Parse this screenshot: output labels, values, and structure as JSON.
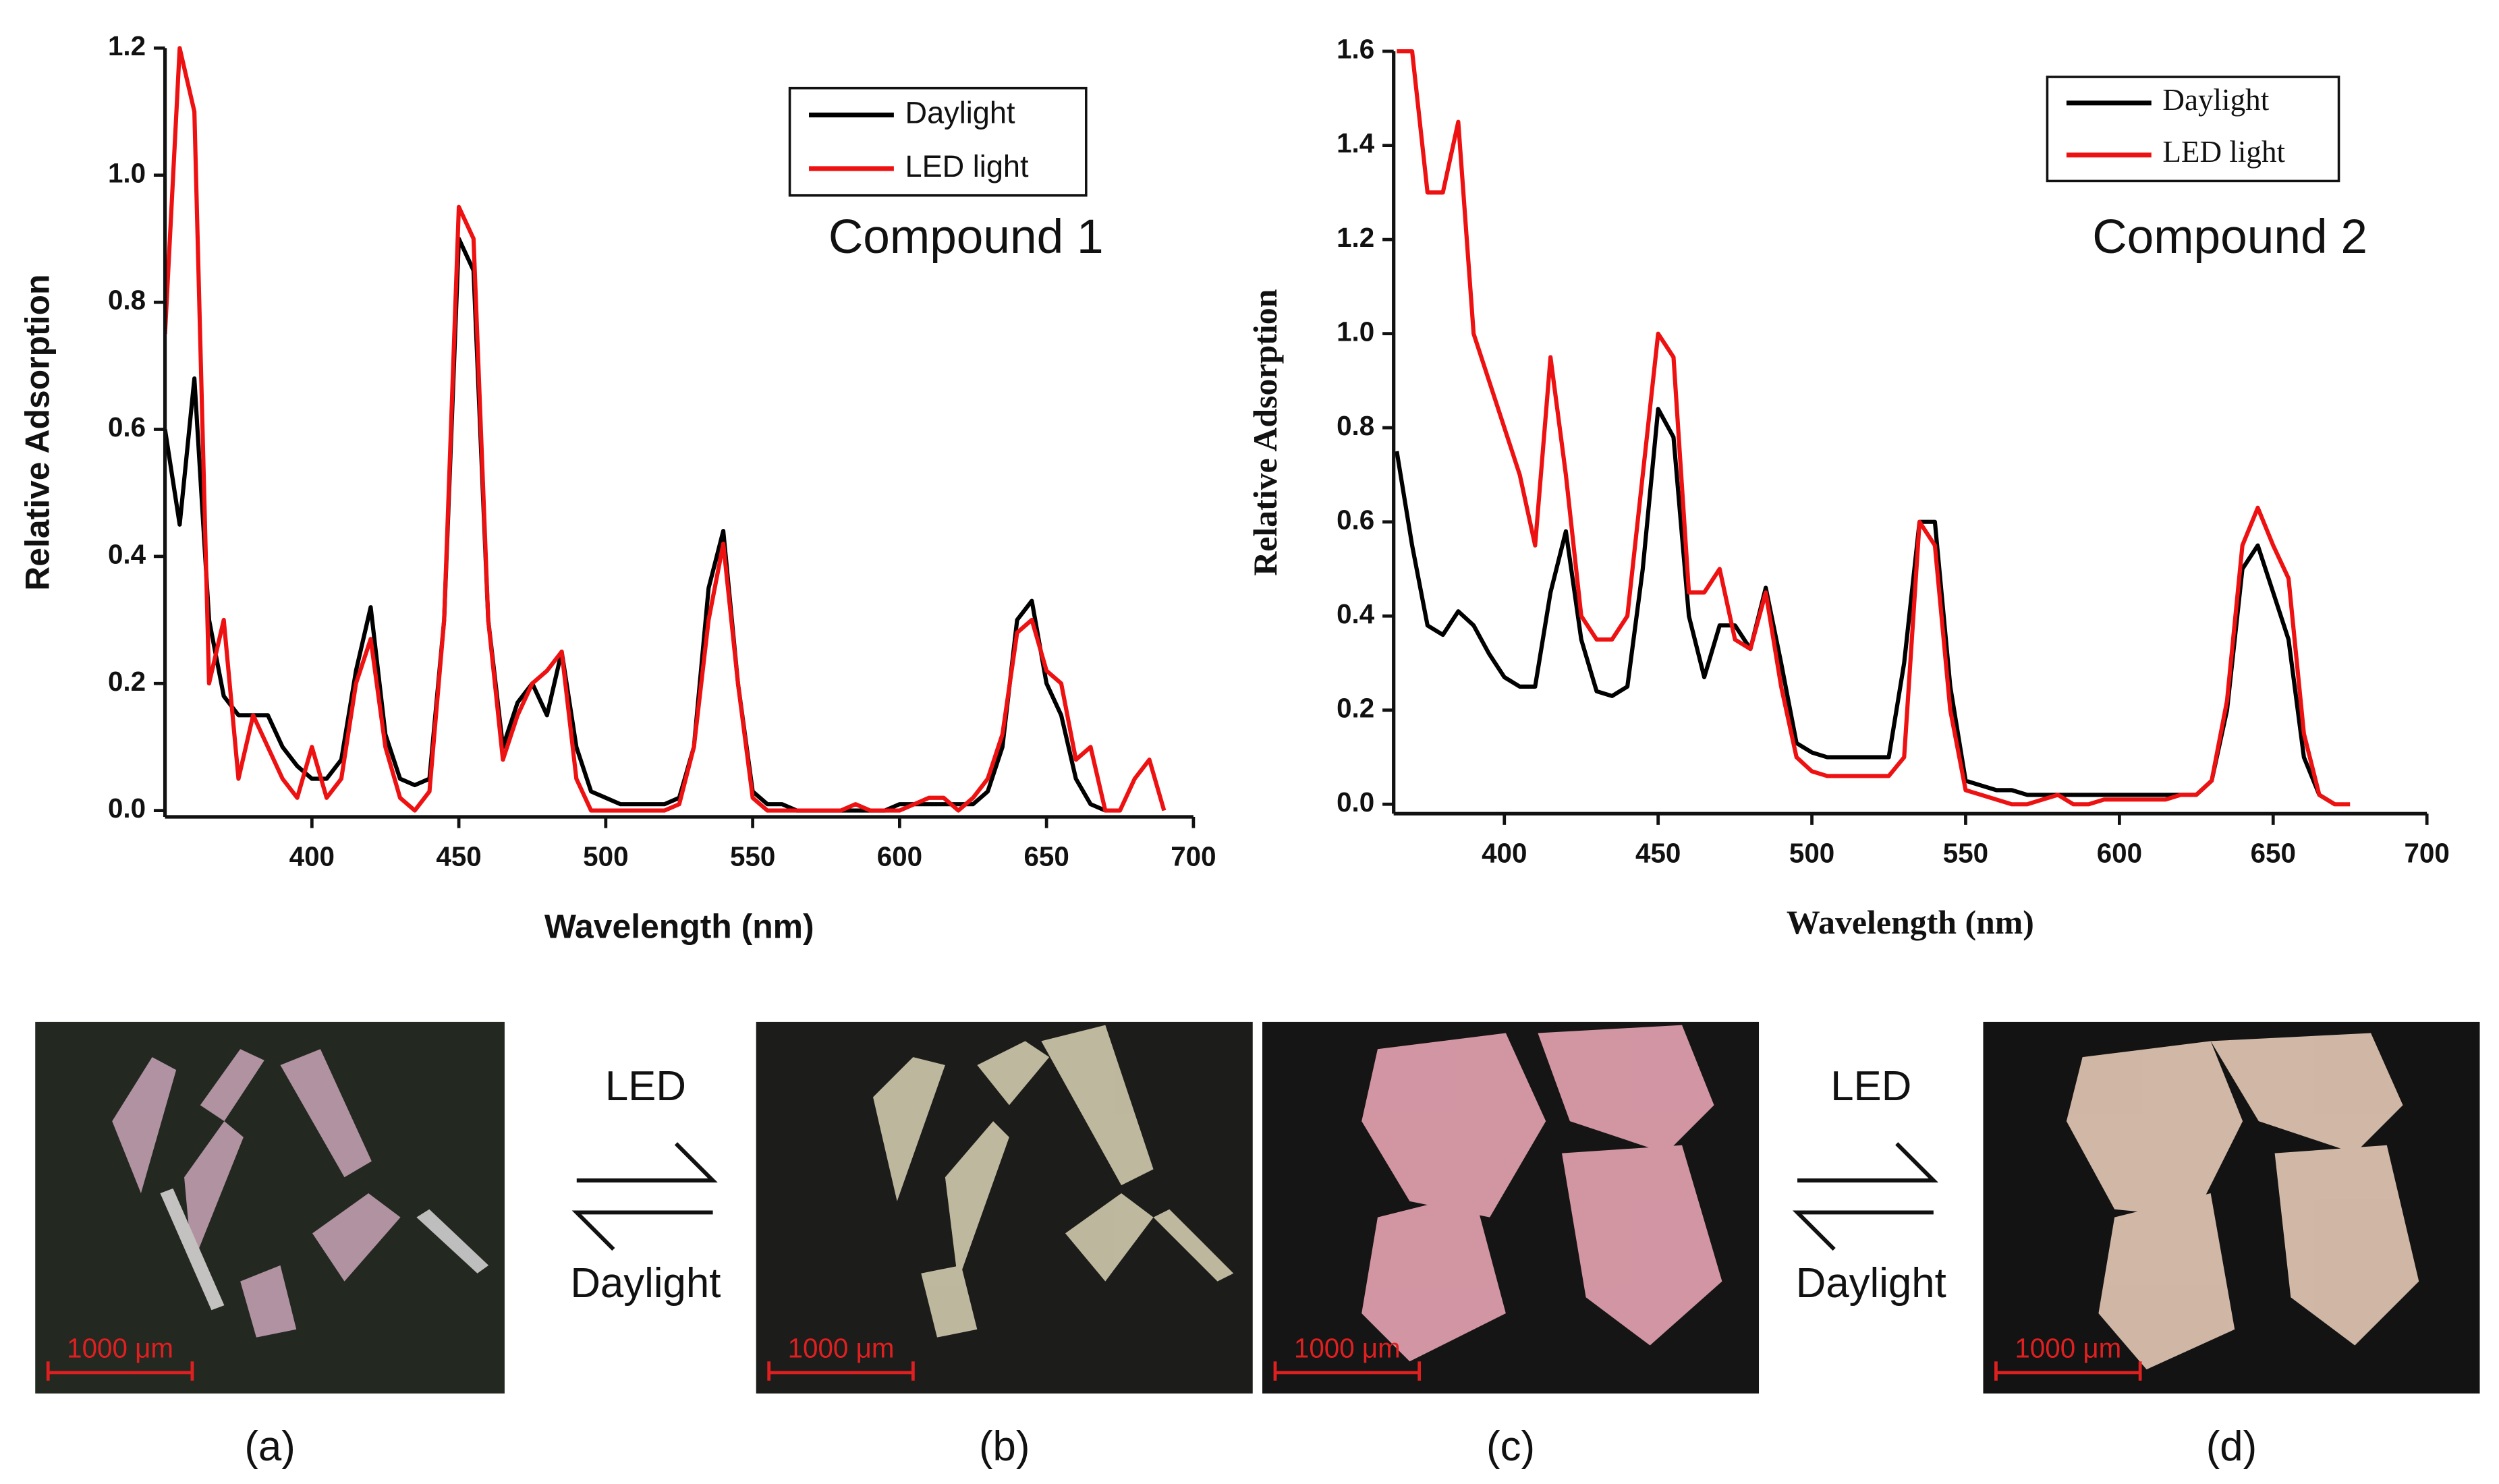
{
  "chart_data": [
    {
      "type": "line",
      "xlabel": "Wavelength (nm)",
      "ylabel": "Relative Adsorption",
      "annotation": "Compound 1",
      "label_font": "sans-serif",
      "legend": "upper right",
      "xlim": [
        350,
        700
      ],
      "xticks": [
        400,
        450,
        500,
        550,
        600,
        650,
        700
      ],
      "ylim": [
        -0.01,
        1.2
      ],
      "yticks": [
        {
          "value": 0,
          "label": "0.0"
        },
        0.2,
        0.4,
        0.6,
        0.8,
        {
          "value": 1,
          "label": "1.0"
        },
        1.2
      ],
      "x": [
        350,
        355,
        360,
        365,
        370,
        375,
        380,
        385,
        390,
        395,
        400,
        405,
        410,
        415,
        420,
        425,
        430,
        435,
        440,
        445,
        450,
        455,
        460,
        465,
        470,
        475,
        480,
        485,
        490,
        495,
        500,
        505,
        510,
        515,
        520,
        525,
        530,
        535,
        540,
        545,
        550,
        555,
        560,
        565,
        570,
        575,
        580,
        585,
        590,
        595,
        600,
        605,
        610,
        615,
        620,
        625,
        630,
        635,
        640,
        645,
        650,
        655,
        660,
        665,
        670,
        675,
        680,
        685,
        690,
        695,
        700
      ],
      "series": [
        {
          "name": "Daylight",
          "color": "#000000",
          "values": [
            0.6,
            0.45,
            0.68,
            0.3,
            0.18,
            0.15,
            0.15,
            0.15,
            0.1,
            0.07,
            0.05,
            0.05,
            0.08,
            0.22,
            0.32,
            0.12,
            0.05,
            0.04,
            0.05,
            0.3,
            0.9,
            0.85,
            0.3,
            0.1,
            0.17,
            0.2,
            0.15,
            0.25,
            0.1,
            0.03,
            0.02,
            0.01,
            0.01,
            0.01,
            0.01,
            0.02,
            0.1,
            0.35,
            0.44,
            0.2,
            0.03,
            0.01,
            0.01,
            0,
            0,
            0,
            0,
            0,
            0,
            0,
            0.01,
            0.01,
            0.01,
            0.01,
            0.01,
            0.01,
            0.03,
            0.1,
            0.3,
            0.33,
            0.2,
            0.15,
            0.05,
            0.01,
            0,
            null,
            null,
            null,
            null,
            null,
            null
          ]
        },
        {
          "name": "LED light",
          "color": "#ee1111",
          "values": [
            0.75,
            1.2,
            1.1,
            0.2,
            0.3,
            0.05,
            0.15,
            0.1,
            0.05,
            0.02,
            0.1,
            0.02,
            0.05,
            0.2,
            0.27,
            0.1,
            0.02,
            0,
            0.03,
            0.3,
            0.95,
            0.9,
            0.3,
            0.08,
            0.15,
            0.2,
            0.22,
            0.25,
            0.05,
            0,
            0,
            0,
            0,
            0,
            0,
            0.01,
            0.1,
            0.3,
            0.42,
            0.2,
            0.02,
            0,
            0,
            0,
            0,
            0,
            0,
            0.01,
            0,
            0,
            0,
            0.01,
            0.02,
            0.02,
            0,
            0.02,
            0.05,
            0.12,
            0.28,
            0.3,
            0.22,
            0.2,
            0.08,
            0.1,
            0,
            0,
            0.05,
            0.08,
            0,
            null,
            null
          ]
        }
      ]
    },
    {
      "type": "line",
      "xlabel": "Wavelength (nm)",
      "ylabel": "Relative Adsorption",
      "annotation": "Compound 2",
      "label_font": "serif",
      "legend": "upper right",
      "xlim": [
        364,
        700
      ],
      "xticks": [
        400,
        450,
        500,
        550,
        600,
        650,
        700
      ],
      "ylim": [
        -0.02,
        1.6
      ],
      "yticks": [
        {
          "value": 0,
          "label": "0.0"
        },
        0.2,
        0.4,
        0.6,
        0.8,
        {
          "value": 1,
          "label": "1.0"
        },
        1.2,
        1.4,
        1.6
      ],
      "x": [
        365,
        370,
        375,
        380,
        385,
        390,
        395,
        400,
        405,
        410,
        415,
        420,
        425,
        430,
        435,
        440,
        445,
        450,
        455,
        460,
        465,
        470,
        475,
        480,
        485,
        490,
        495,
        500,
        505,
        510,
        515,
        520,
        525,
        530,
        535,
        540,
        545,
        550,
        555,
        560,
        565,
        570,
        575,
        580,
        585,
        590,
        595,
        600,
        605,
        610,
        615,
        620,
        625,
        630,
        635,
        640,
        645,
        650,
        655,
        660,
        665,
        670,
        675,
        680,
        685,
        690,
        695,
        700
      ],
      "series": [
        {
          "name": "Daylight",
          "color": "#000000",
          "values": [
            0.75,
            0.55,
            0.38,
            0.36,
            0.41,
            0.38,
            0.32,
            0.27,
            0.25,
            0.25,
            0.45,
            0.58,
            0.35,
            0.24,
            0.23,
            0.25,
            0.5,
            0.84,
            0.78,
            0.4,
            0.27,
            0.38,
            0.38,
            0.33,
            0.46,
            0.3,
            0.13,
            0.11,
            0.1,
            0.1,
            0.1,
            0.1,
            0.1,
            0.3,
            0.6,
            0.6,
            0.25,
            0.05,
            0.04,
            0.03,
            0.03,
            0.02,
            0.02,
            0.02,
            0.02,
            0.02,
            0.02,
            0.02,
            0.02,
            0.02,
            0.02,
            0.02,
            0.02,
            0.05,
            0.2,
            0.5,
            0.55,
            0.45,
            0.35,
            0.1,
            0.02,
            0,
            null,
            null,
            null,
            null,
            null,
            null
          ]
        },
        {
          "name": "LED light",
          "color": "#ee1111",
          "values": [
            1.6,
            1.6,
            1.3,
            1.3,
            1.45,
            1.0,
            0.9,
            0.8,
            0.7,
            0.55,
            0.95,
            0.7,
            0.4,
            0.35,
            0.35,
            0.4,
            0.7,
            1.0,
            0.95,
            0.45,
            0.45,
            0.5,
            0.35,
            0.33,
            0.45,
            0.25,
            0.1,
            0.07,
            0.06,
            0.06,
            0.06,
            0.06,
            0.06,
            0.1,
            0.6,
            0.55,
            0.2,
            0.03,
            0.02,
            0.01,
            0,
            0,
            0.01,
            0.02,
            0,
            0,
            0.01,
            0.01,
            0.01,
            0.01,
            0.01,
            0.02,
            0.02,
            0.05,
            0.22,
            0.55,
            0.63,
            0.55,
            0.48,
            0.15,
            0.02,
            0,
            0,
            null,
            null,
            null,
            null,
            null
          ]
        }
      ]
    }
  ],
  "panels": [
    {
      "label": "(a)",
      "scale": "1000 μm"
    },
    {
      "label": "(b)",
      "scale": "1000 μm"
    },
    {
      "label": "(c)",
      "scale": "1000 μm"
    },
    {
      "label": "(d)",
      "scale": "1000 μm"
    }
  ],
  "arrows": [
    {
      "top": "LED",
      "bottom": "Daylight"
    },
    {
      "top": "LED",
      "bottom": "Daylight"
    }
  ]
}
